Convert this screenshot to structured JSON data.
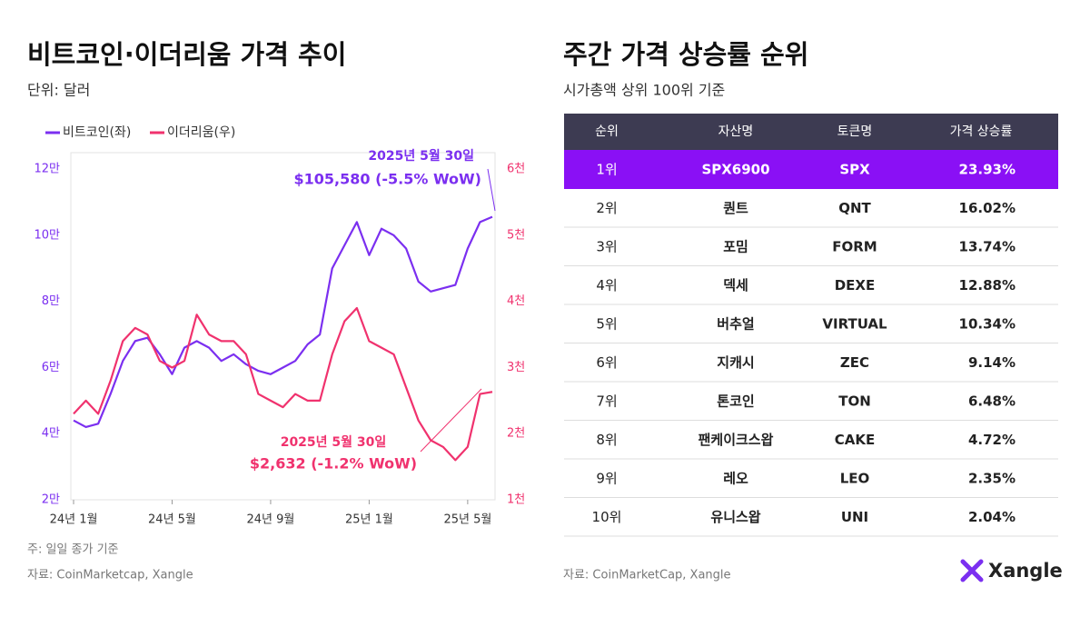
{
  "chart_data": {
    "type": "line",
    "title": "비트코인·이더리움 가격 추이",
    "subtitle": "단위: 달러",
    "categories": [
      "24년 1월",
      null,
      null,
      null,
      null,
      null,
      null,
      null,
      "24년 5월",
      null,
      null,
      null,
      null,
      null,
      null,
      null,
      "24년 9월",
      null,
      null,
      null,
      null,
      null,
      null,
      null,
      "25년 1월",
      null,
      null,
      null,
      null,
      null,
      null,
      null,
      "25년 5월",
      null,
      null
    ],
    "series": [
      {
        "name": "비트코인(좌)",
        "color": "#7b2ff0",
        "axis": "y",
        "values": [
          44000,
          42000,
          43000,
          52000,
          62000,
          68000,
          69000,
          64000,
          58000,
          66000,
          68000,
          66000,
          62000,
          64000,
          61000,
          59000,
          58000,
          60000,
          62000,
          67000,
          70000,
          90000,
          97000,
          104000,
          94000,
          102000,
          100000,
          96000,
          86000,
          83000,
          84000,
          85000,
          96000,
          104000,
          105580
        ]
      },
      {
        "name": "이더리움(우)",
        "color": "#f0326e",
        "axis": "y2",
        "values": [
          2300,
          2500,
          2300,
          2800,
          3400,
          3600,
          3500,
          3100,
          3000,
          3100,
          3800,
          3500,
          3400,
          3400,
          3200,
          2600,
          2500,
          2400,
          2600,
          2500,
          2500,
          3200,
          3700,
          3900,
          3400,
          3300,
          3200,
          2700,
          2200,
          1900,
          1800,
          1600,
          1800,
          2600,
          2632
        ]
      }
    ],
    "ylim": [
      20000,
      125000
    ],
    "yticks": [
      {
        "value": 20000,
        "label": "2만"
      },
      {
        "value": 40000,
        "label": "4만"
      },
      {
        "value": 60000,
        "label": "6만"
      },
      {
        "value": 80000,
        "label": "8만"
      },
      {
        "value": 100000,
        "label": "10만"
      },
      {
        "value": 120000,
        "label": "12만"
      }
    ],
    "y2lim": [
      1000,
      6250
    ],
    "y2ticks": [
      {
        "value": 1000,
        "label": "1천"
      },
      {
        "value": 2000,
        "label": "2천"
      },
      {
        "value": 3000,
        "label": "3천"
      },
      {
        "value": 4000,
        "label": "4천"
      },
      {
        "value": 5000,
        "label": "5천"
      },
      {
        "value": 6000,
        "label": "6천"
      }
    ],
    "annotations": [
      "2025년 5월 30일",
      "$105,580 (-5.5% WoW)",
      "2025년 5월 30일",
      "$2,632 (-1.2% WoW)"
    ],
    "notes": [
      "주: 일일 종가 기준",
      "자료: CoinMarketcap, Xangle"
    ]
  },
  "table": {
    "title": "주간 가격 상승률 순위",
    "subtitle": "시가총액 상위 100위 기준",
    "columns": [
      "순위",
      "자산명",
      "토큰명",
      "가격 상승률"
    ],
    "rows": [
      [
        "1위",
        "SPX6900",
        "SPX",
        "23.93%"
      ],
      [
        "2위",
        "퀀트",
        "QNT",
        "16.02%"
      ],
      [
        "3위",
        "포밈",
        "FORM",
        "13.74%"
      ],
      [
        "4위",
        "덱세",
        "DEXE",
        "12.88%"
      ],
      [
        "5위",
        "버추얼",
        "VIRTUAL",
        "10.34%"
      ],
      [
        "6위",
        "지캐시",
        "ZEC",
        "9.14%"
      ],
      [
        "7위",
        "톤코인",
        "TON",
        "6.48%"
      ],
      [
        "8위",
        "팬케이크스왑",
        "CAKE",
        "4.72%"
      ],
      [
        "9위",
        "레오",
        "LEO",
        "2.35%"
      ],
      [
        "10위",
        "유니스왑",
        "UNI",
        "2.04%"
      ]
    ],
    "source": "자료: CoinMarketCap, Xangle"
  },
  "logo": "Xangle"
}
